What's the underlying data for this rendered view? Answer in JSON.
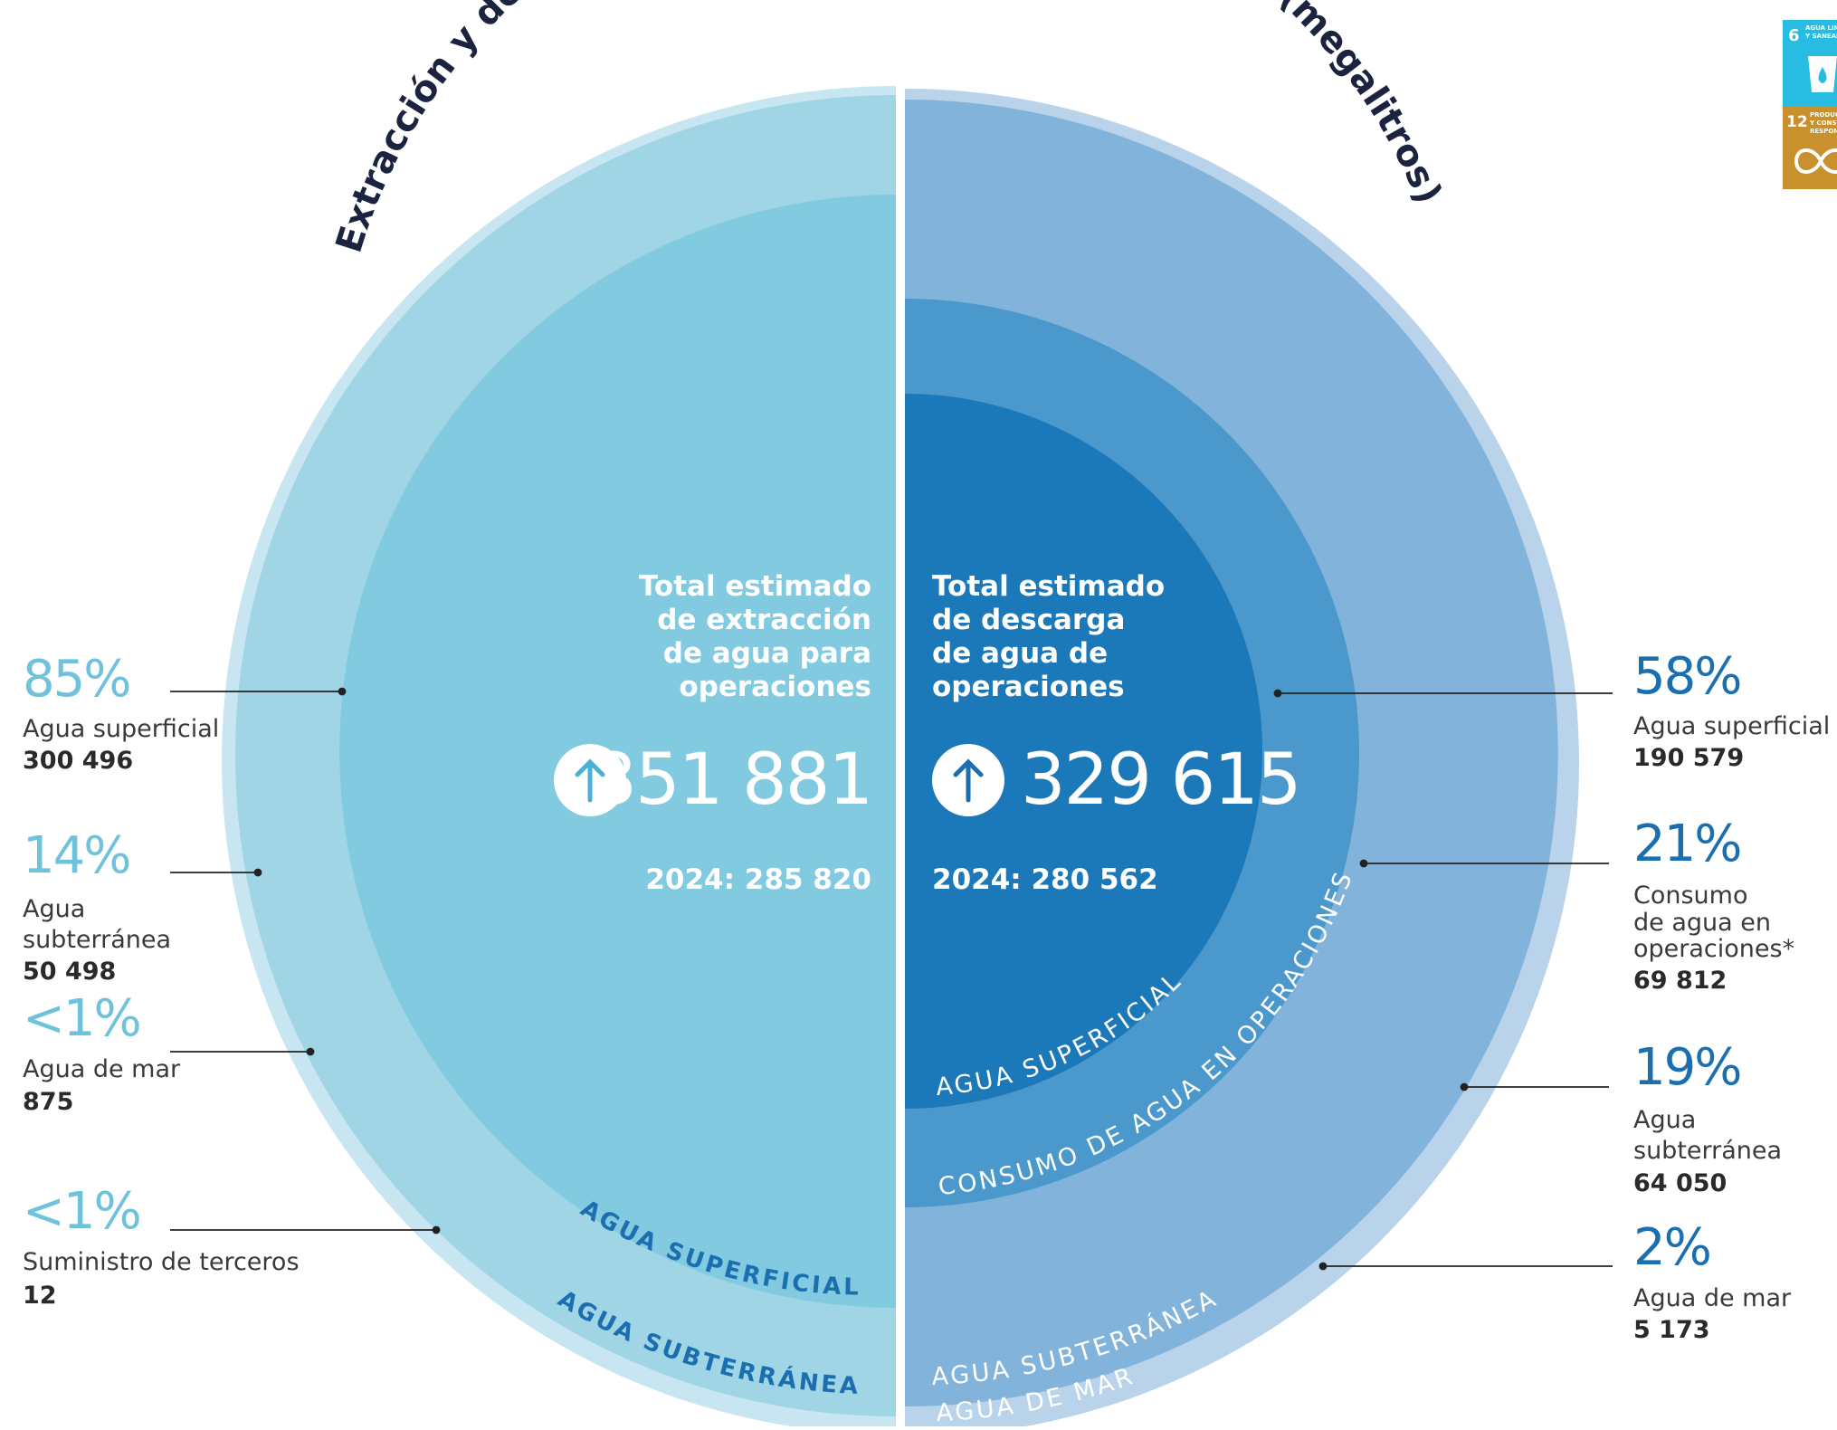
{
  "title": "Extracción y descarga de agua de operaciones mineras (megalitros)",
  "chart_data": {
    "type": "pie",
    "title": "Extracción y descarga de agua de operaciones mineras (megalitros)",
    "halves": [
      {
        "name": "extraccion",
        "heading": [
          "Total estimado",
          "de extracción",
          "de agua para",
          "operaciones"
        ],
        "total": "351 881",
        "previous": "2024: 285 820",
        "ring_labels": [
          "AGUA SUPERFICIAL",
          "AGUA SUBTERRÁNEA"
        ],
        "segments": [
          {
            "pct": "85%",
            "label": [
              "Agua superficial"
            ],
            "value": "300 496",
            "share": 0.85
          },
          {
            "pct": "14%",
            "label": [
              "Agua",
              "subterránea"
            ],
            "value": "50 498",
            "share": 0.14
          },
          {
            "pct": "<1%",
            "label": [
              "Agua de mar"
            ],
            "value": "875",
            "share": 0.0025
          },
          {
            "pct": "<1%",
            "label": [
              "Suministro de terceros"
            ],
            "value": "12",
            "share": 3e-05
          }
        ]
      },
      {
        "name": "descarga",
        "heading": [
          "Total estimado",
          "de descarga",
          "de agua de",
          "operaciones"
        ],
        "total": "329 615",
        "previous": "2024: 280 562",
        "ring_labels": [
          "AGUA SUPERFICIAL",
          "CONSUMO DE AGUA EN OPERACIONES",
          "AGUA SUBTERRÁNEA",
          "AGUA DE MAR"
        ],
        "segments": [
          {
            "pct": "58%",
            "label": [
              "Agua superficial"
            ],
            "value": "190 579",
            "share": 0.58
          },
          {
            "pct": "21%",
            "label": [
              "Consumo",
              "de agua en",
              "operaciones*"
            ],
            "value": "69 812",
            "share": 0.21
          },
          {
            "pct": "19%",
            "label": [
              "Agua",
              "subterránea"
            ],
            "value": "64 050",
            "share": 0.19
          },
          {
            "pct": "2%",
            "label": [
              "Agua de mar"
            ],
            "value": "5 173",
            "share": 0.02
          }
        ]
      }
    ]
  },
  "colors": {
    "extraction_outer": "#a0d5e6",
    "extraction_inner": "#82cae0",
    "discharge_outer": "#82b3da",
    "discharge_mid": "#4a98cc",
    "discharge_inner": "#1b78b9",
    "pct_left": "#6fc2dc",
    "pct_right": "#1a6fb0",
    "title": "#1c2340"
  },
  "sdg": {
    "badge_6": {
      "number": "6",
      "text": [
        "AGUA LIMPIA",
        "Y SANEAMIENTO"
      ],
      "color": "#27bde2"
    },
    "badge_12": {
      "number": "12",
      "text": [
        "PRODUCCIÓN",
        "Y CONSUMO",
        "RESPONSABLES"
      ],
      "color": "#c9902e"
    }
  }
}
